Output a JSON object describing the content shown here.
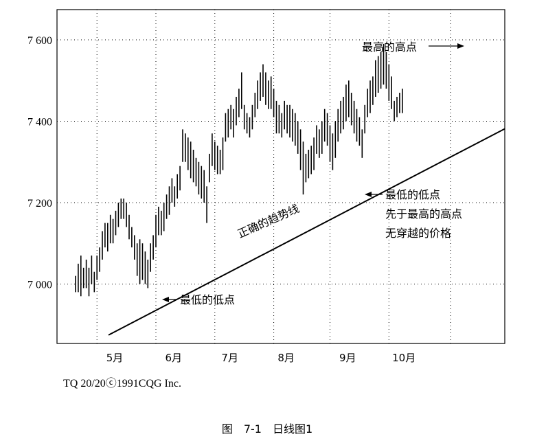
{
  "chart_data": {
    "type": "ohlc",
    "title": "",
    "xlabel": "",
    "ylabel": "",
    "ylim": [
      6900,
      7680
    ],
    "grid": true,
    "y_ticks": [
      {
        "value": 7000,
        "label": "7 000"
      },
      {
        "value": 7200,
        "label": "7 200"
      },
      {
        "value": 7400,
        "label": "7 400"
      },
      {
        "value": 7600,
        "label": "7 600"
      }
    ],
    "x_ticks": [
      {
        "bar_index": 10,
        "label": "5月"
      },
      {
        "bar_index": 32,
        "label": "6月"
      },
      {
        "bar_index": 53,
        "label": "7月"
      },
      {
        "bar_index": 74,
        "label": "8月"
      },
      {
        "bar_index": 97,
        "label": "9月"
      },
      {
        "bar_index": 118,
        "label": "10月"
      }
    ],
    "vertical_gridlines_at_bar": [
      8,
      30,
      52,
      74,
      95,
      117,
      140
    ],
    "series": [
      {
        "values": [
          [
            7020,
            6980
          ],
          [
            7050,
            6980
          ],
          [
            7070,
            6970
          ],
          [
            7040,
            6990
          ],
          [
            7060,
            6990
          ],
          [
            7040,
            6970
          ],
          [
            7070,
            7000
          ],
          [
            7030,
            6980
          ],
          [
            7070,
            7010
          ],
          [
            7090,
            7030
          ],
          [
            7130,
            7060
          ],
          [
            7150,
            7090
          ],
          [
            7150,
            7080
          ],
          [
            7170,
            7100
          ],
          [
            7160,
            7100
          ],
          [
            7180,
            7120
          ],
          [
            7200,
            7140
          ],
          [
            7210,
            7160
          ],
          [
            7210,
            7160
          ],
          [
            7200,
            7140
          ],
          [
            7170,
            7110
          ],
          [
            7140,
            7090
          ],
          [
            7120,
            7060
          ],
          [
            7100,
            7020
          ],
          [
            7110,
            7000
          ],
          [
            7100,
            7010
          ],
          [
            7080,
            7000
          ],
          [
            7060,
            6990
          ],
          [
            7100,
            7030
          ],
          [
            7120,
            7060
          ],
          [
            7170,
            7090
          ],
          [
            7190,
            7120
          ],
          [
            7180,
            7120
          ],
          [
            7200,
            7130
          ],
          [
            7220,
            7160
          ],
          [
            7240,
            7170
          ],
          [
            7260,
            7200
          ],
          [
            7240,
            7190
          ],
          [
            7270,
            7210
          ],
          [
            7290,
            7230
          ],
          [
            7380,
            7300
          ],
          [
            7370,
            7300
          ],
          [
            7360,
            7280
          ],
          [
            7350,
            7260
          ],
          [
            7330,
            7250
          ],
          [
            7310,
            7240
          ],
          [
            7300,
            7220
          ],
          [
            7290,
            7210
          ],
          [
            7280,
            7200
          ],
          [
            7240,
            7150
          ],
          [
            7320,
            7250
          ],
          [
            7370,
            7290
          ],
          [
            7350,
            7280
          ],
          [
            7340,
            7270
          ],
          [
            7330,
            7270
          ],
          [
            7360,
            7280
          ],
          [
            7420,
            7350
          ],
          [
            7430,
            7360
          ],
          [
            7440,
            7380
          ],
          [
            7430,
            7360
          ],
          [
            7460,
            7390
          ],
          [
            7480,
            7410
          ],
          [
            7520,
            7430
          ],
          [
            7440,
            7380
          ],
          [
            7420,
            7370
          ],
          [
            7410,
            7360
          ],
          [
            7440,
            7380
          ],
          [
            7470,
            7410
          ],
          [
            7500,
            7430
          ],
          [
            7520,
            7450
          ],
          [
            7540,
            7460
          ],
          [
            7520,
            7440
          ],
          [
            7500,
            7430
          ],
          [
            7510,
            7430
          ],
          [
            7480,
            7410
          ],
          [
            7450,
            7370
          ],
          [
            7440,
            7370
          ],
          [
            7420,
            7360
          ],
          [
            7450,
            7380
          ],
          [
            7440,
            7370
          ],
          [
            7440,
            7360
          ],
          [
            7430,
            7350
          ],
          [
            7420,
            7340
          ],
          [
            7400,
            7320
          ],
          [
            7380,
            7280
          ],
          [
            7350,
            7220
          ],
          [
            7320,
            7250
          ],
          [
            7330,
            7260
          ],
          [
            7340,
            7270
          ],
          [
            7360,
            7280
          ],
          [
            7390,
            7320
          ],
          [
            7380,
            7310
          ],
          [
            7400,
            7320
          ],
          [
            7430,
            7350
          ],
          [
            7420,
            7340
          ],
          [
            7390,
            7300
          ],
          [
            7370,
            7280
          ],
          [
            7400,
            7310
          ],
          [
            7430,
            7350
          ],
          [
            7450,
            7370
          ],
          [
            7460,
            7380
          ],
          [
            7490,
            7400
          ],
          [
            7500,
            7410
          ],
          [
            7470,
            7390
          ],
          [
            7450,
            7370
          ],
          [
            7430,
            7350
          ],
          [
            7410,
            7340
          ],
          [
            7380,
            7310
          ],
          [
            7440,
            7370
          ],
          [
            7480,
            7410
          ],
          [
            7500,
            7420
          ],
          [
            7510,
            7440
          ],
          [
            7550,
            7460
          ],
          [
            7560,
            7470
          ],
          [
            7570,
            7480
          ],
          [
            7590,
            7490
          ],
          [
            7570,
            7480
          ],
          [
            7540,
            7450
          ],
          [
            7510,
            7430
          ],
          [
            7450,
            7400
          ],
          [
            7460,
            7410
          ],
          [
            7470,
            7420
          ],
          [
            7480,
            7420
          ]
        ]
      }
    ],
    "trendline": {
      "start": {
        "bar_index": 0,
        "value": 6900
      },
      "end": {
        "bar_index": 131,
        "value": 7395
      }
    },
    "annotations": {
      "highest_high": "最高的高点",
      "trend_label": "正确的趋势线",
      "low_1": "最低的低点",
      "low_2_line1": "最低的低点",
      "low_2_line2": "先于最高的高点",
      "low_2_line3": "无穿越的价格"
    },
    "credit": "TQ 20/20ⓒ1991CQG Inc."
  },
  "figure_caption": "图　7-1　日线图1"
}
